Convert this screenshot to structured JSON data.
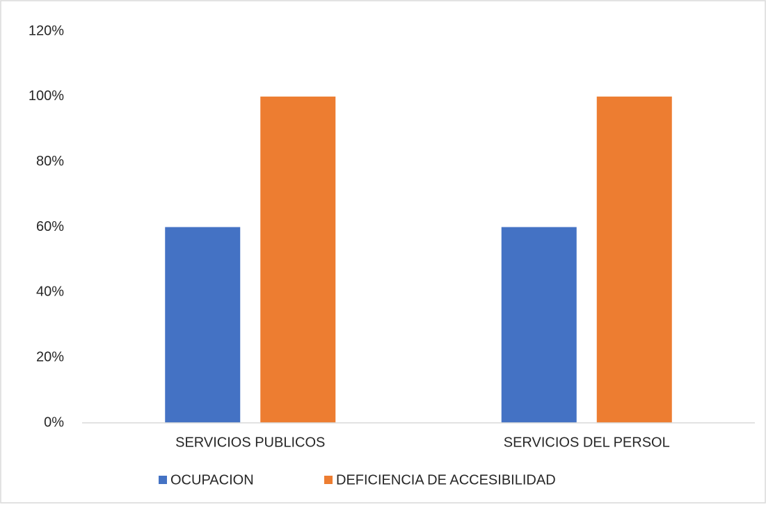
{
  "chart_data": {
    "type": "bar",
    "categories": [
      "SERVICIOS PUBLICOS",
      "SERVICIOS DEL PERSOL"
    ],
    "series": [
      {
        "name": "OCUPACION",
        "color": "#4472c4",
        "values": [
          60,
          60
        ]
      },
      {
        "name": "DEFICIENCIA DE ACCESIBILIDAD",
        "color": "#ed7d31",
        "values": [
          100,
          100
        ]
      }
    ],
    "ylim": [
      0,
      120
    ],
    "yticks": [
      {
        "value": 0,
        "label": "0%"
      },
      {
        "value": 20,
        "label": "20%"
      },
      {
        "value": 40,
        "label": "40%"
      },
      {
        "value": 60,
        "label": "60%"
      },
      {
        "value": 80,
        "label": "80%"
      },
      {
        "value": 100,
        "label": "100%"
      },
      {
        "value": 120,
        "label": "120%"
      }
    ],
    "grid": false,
    "legend": "bottom"
  }
}
